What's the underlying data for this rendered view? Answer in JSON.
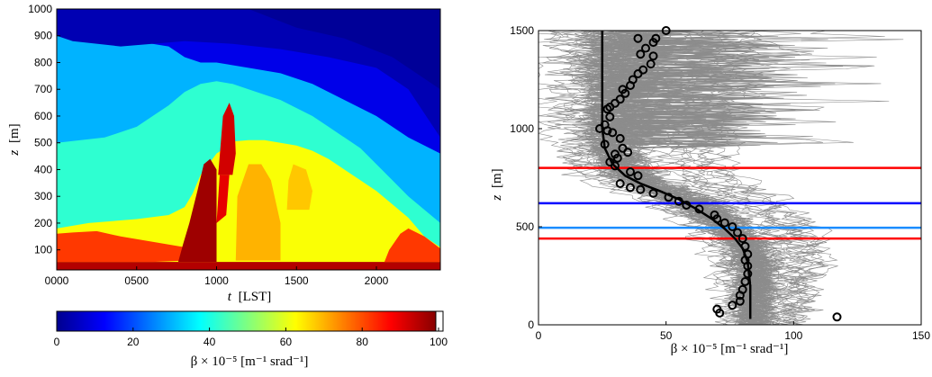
{
  "chart_data": [
    {
      "type": "heatmap",
      "title": "",
      "xlabel_var": "t",
      "xlabel_unit": "[LST]",
      "ylabel_var": "z",
      "ylabel_unit": "[m]",
      "x_ticks": [
        "0000",
        "0500",
        "1000",
        "1500",
        "2000"
      ],
      "x_tick_values": [
        0,
        500,
        1000,
        1500,
        2000
      ],
      "xlim": [
        0,
        2400
      ],
      "y_ticks": [
        "100",
        "200",
        "300",
        "400",
        "500",
        "600",
        "700",
        "800",
        "900",
        "1000"
      ],
      "y_tick_values": [
        100,
        200,
        300,
        400,
        500,
        600,
        700,
        800,
        900,
        1000
      ],
      "ylim": [
        25,
        1000
      ],
      "colorbar": {
        "label": "β × 10⁻⁵ [m⁻¹ srad⁻¹]",
        "ticks": [
          "0",
          "20",
          "40",
          "60",
          "80",
          "100"
        ],
        "tick_values": [
          0,
          20,
          40,
          60,
          80,
          100
        ],
        "range": [
          0,
          100
        ],
        "colormap": "jet"
      },
      "boundaries": [
        {
          "name": "yellow-top",
          "level": 60,
          "points": [
            [
              0,
              180
            ],
            [
              200,
              200
            ],
            [
              500,
              215
            ],
            [
              700,
              230
            ],
            [
              800,
              260
            ],
            [
              850,
              310
            ],
            [
              900,
              380
            ],
            [
              950,
              420
            ],
            [
              1000,
              460
            ],
            [
              1050,
              480
            ],
            [
              1100,
              505
            ],
            [
              1200,
              510
            ],
            [
              1300,
              510
            ],
            [
              1400,
              500
            ],
            [
              1500,
              490
            ],
            [
              1600,
              470
            ],
            [
              1700,
              440
            ],
            [
              1800,
              400
            ],
            [
              1900,
              360
            ],
            [
              2000,
              320
            ],
            [
              2100,
              270
            ],
            [
              2200,
              220
            ],
            [
              2300,
              150
            ],
            [
              2400,
              110
            ]
          ]
        },
        {
          "name": "cyan-top",
          "level": 40,
          "points": [
            [
              0,
              500
            ],
            [
              300,
              520
            ],
            [
              500,
              560
            ],
            [
              600,
              600
            ],
            [
              700,
              640
            ],
            [
              800,
              690
            ],
            [
              900,
              720
            ],
            [
              1000,
              730
            ],
            [
              1100,
              720
            ],
            [
              1200,
              700
            ],
            [
              1300,
              680
            ],
            [
              1400,
              660
            ],
            [
              1500,
              630
            ],
            [
              1600,
              600
            ],
            [
              1700,
              560
            ],
            [
              1800,
              520
            ],
            [
              1900,
              480
            ],
            [
              2000,
              420
            ],
            [
              2100,
              360
            ],
            [
              2200,
              300
            ],
            [
              2300,
              250
            ],
            [
              2400,
              200
            ]
          ]
        },
        {
          "name": "lightblue-top",
          "level": 28,
          "points": [
            [
              0,
              930
            ],
            [
              300,
              900
            ],
            [
              600,
              870
            ],
            [
              700,
              860
            ],
            [
              800,
              820
            ],
            [
              900,
              800
            ],
            [
              1000,
              800
            ],
            [
              1200,
              780
            ],
            [
              1400,
              760
            ],
            [
              1600,
              720
            ],
            [
              1800,
              660
            ],
            [
              2000,
              600
            ],
            [
              2200,
              520
            ],
            [
              2400,
              460
            ]
          ]
        }
      ]
    },
    {
      "type": "line",
      "title": "",
      "xlabel": "β × 10⁻⁵ [m⁻¹ srad⁻¹]",
      "ylabel_var": "z",
      "ylabel_unit": "[m]",
      "x_ticks": [
        "0",
        "50",
        "100",
        "150"
      ],
      "x_tick_values": [
        0,
        50,
        100,
        150
      ],
      "xlim": [
        0,
        150
      ],
      "y_ticks": [
        "0",
        "500",
        "1000",
        "1500"
      ],
      "y_tick_values": [
        0,
        500,
        1000,
        1500
      ],
      "ylim": [
        0,
        1500
      ],
      "horizontal_lines": [
        {
          "y": 800,
          "color": "#ff0000"
        },
        {
          "y": 620,
          "color": "#0000ff"
        },
        {
          "y": 495,
          "color": "#1a8cff"
        },
        {
          "y": 440,
          "color": "#ff0000"
        }
      ],
      "fit_curve": {
        "color": "#000000",
        "x": [
          25,
          25,
          25,
          25,
          26,
          29,
          34,
          40,
          48,
          55,
          62,
          68,
          73,
          77,
          80,
          82,
          83,
          83,
          83
        ],
        "y": [
          1500,
          1400,
          1200,
          1000,
          900,
          820,
          760,
          720,
          680,
          640,
          590,
          540,
          490,
          440,
          390,
          320,
          200,
          80,
          30
        ]
      },
      "markers": {
        "symbol": "circle",
        "x": [
          50,
          46,
          45,
          39,
          42,
          40,
          45,
          44,
          41,
          39,
          37,
          36,
          33,
          34,
          32,
          30,
          28,
          27,
          28,
          26,
          24,
          27,
          29,
          32,
          26,
          33,
          35,
          30,
          31,
          28,
          30,
          36,
          39,
          32,
          36,
          40,
          45,
          51,
          55,
          58,
          63,
          69,
          70,
          73,
          76,
          78,
          80,
          81,
          82,
          81,
          82,
          82,
          81,
          80,
          79,
          79,
          76,
          70,
          71,
          117
        ],
        "y": [
          1500,
          1460,
          1440,
          1460,
          1410,
          1380,
          1370,
          1330,
          1300,
          1280,
          1250,
          1220,
          1200,
          1180,
          1150,
          1130,
          1110,
          1100,
          1060,
          1020,
          1000,
          990,
          980,
          950,
          920,
          900,
          880,
          870,
          850,
          830,
          810,
          780,
          760,
          720,
          700,
          690,
          670,
          650,
          630,
          610,
          590,
          560,
          540,
          520,
          500,
          470,
          440,
          400,
          360,
          330,
          300,
          260,
          220,
          180,
          150,
          120,
          100,
          80,
          60,
          40
        ]
      },
      "profiles": {
        "count": 80,
        "color": "#8c8c8c"
      }
    }
  ]
}
